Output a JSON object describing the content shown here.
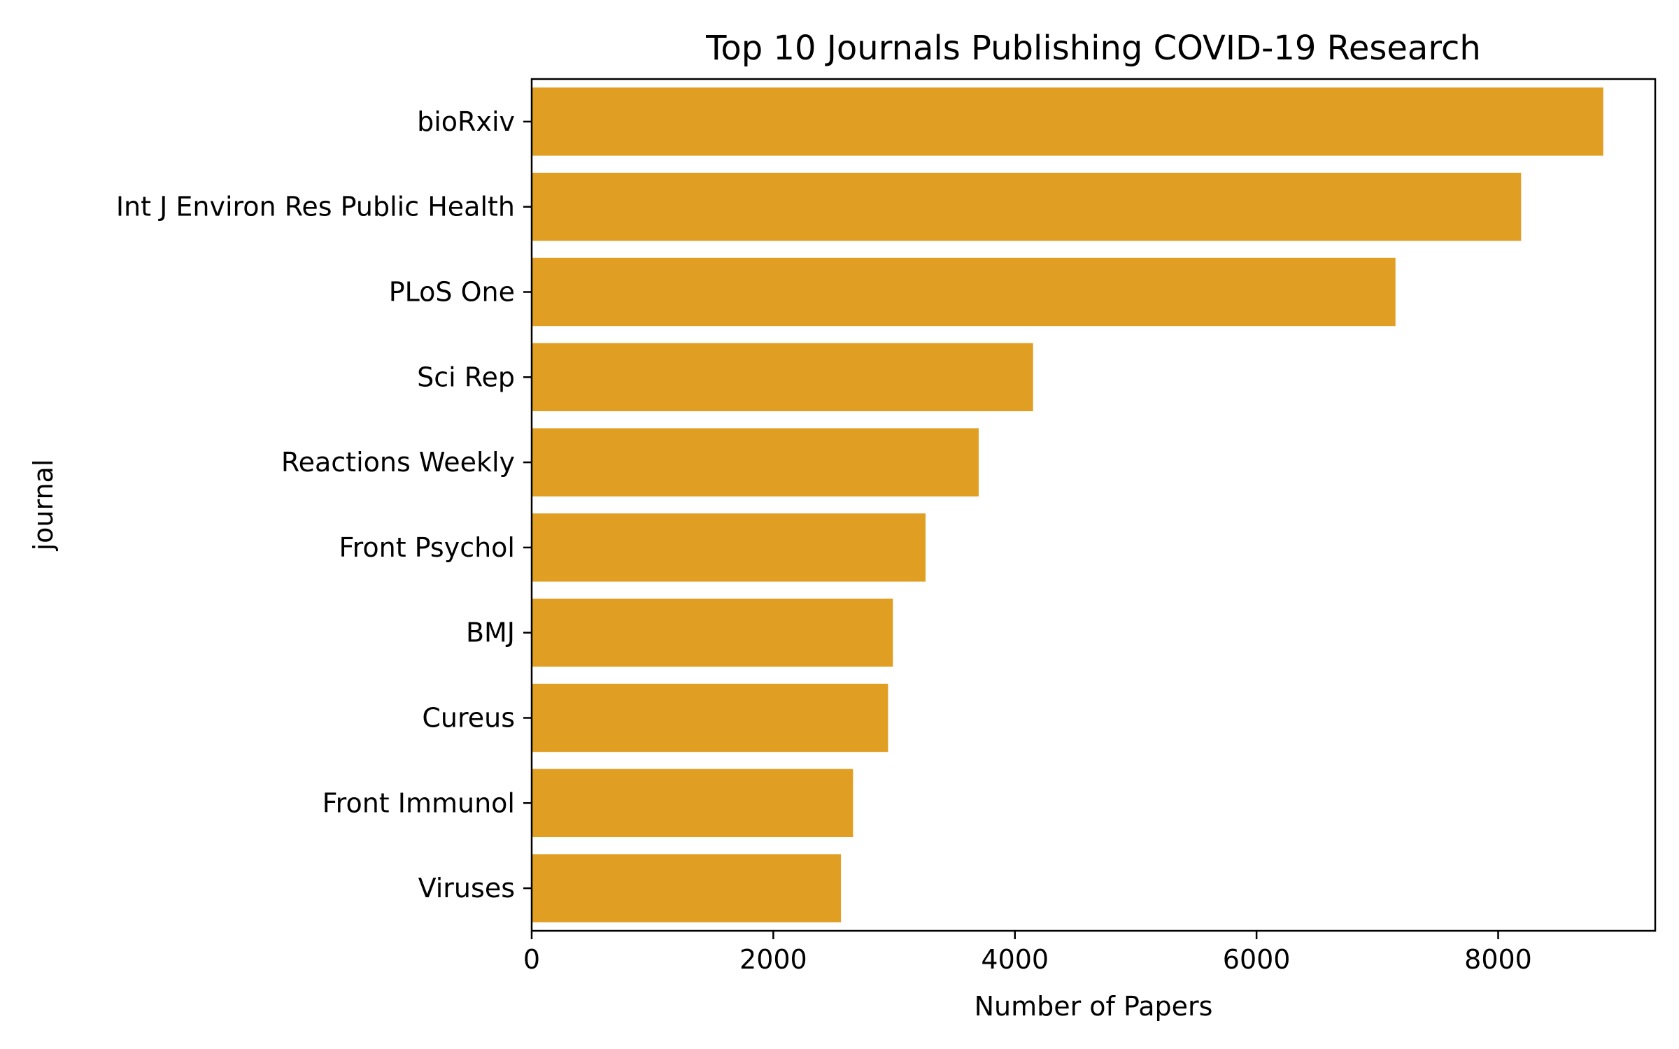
{
  "chart_data": {
    "type": "bar",
    "orientation": "horizontal",
    "title": "Top 10 Journals Publishing COVID-19 Research",
    "xlabel": "Number of Papers",
    "ylabel": "journal",
    "categories": [
      "bioRxiv",
      "Int J Environ Res Public Health",
      "PLoS One",
      "Sci Rep",
      "Reactions Weekly",
      "Front Psychol",
      "BMJ",
      "Cureus",
      "Front Immunol",
      "Viruses"
    ],
    "values": [
      8870,
      8190,
      7150,
      4150,
      3700,
      3260,
      2990,
      2950,
      2660,
      2560
    ],
    "xlim": [
      0,
      9300
    ],
    "xticks": [
      0,
      2000,
      4000,
      6000,
      8000
    ],
    "grid": false,
    "legend": "none",
    "bar_color": "#e09e23"
  }
}
